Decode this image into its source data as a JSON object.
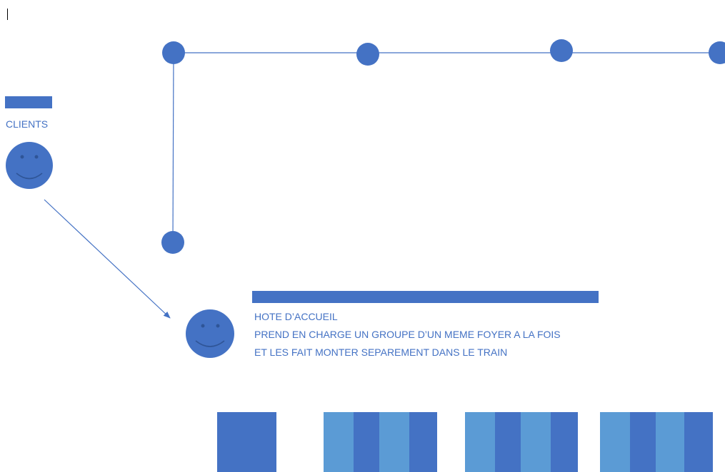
{
  "colors": {
    "primary": "#4472c4",
    "secondary": "#5b9bd5",
    "line": "#4472c4"
  },
  "clients": {
    "label": "CLIENTS",
    "icon": "smiley-face-icon"
  },
  "host": {
    "title": "HOTE D’ACCUEIL",
    "line1": "PREND EN CHARGE UN GROUPE D’UN MEME FOYER A LA FOIS",
    "line2": "ET LES FAIT MONTER SEPAREMENT DANS LE TRAIN",
    "icon": "smiley-face-icon"
  },
  "train": {
    "cars": [
      {
        "stripes": [
          "primary"
        ]
      },
      {
        "stripes": [
          "secondary",
          "primary",
          "secondary",
          "primary"
        ]
      },
      {
        "stripes": [
          "secondary",
          "primary",
          "secondary",
          "primary"
        ]
      },
      {
        "stripes": [
          "secondary",
          "primary",
          "secondary",
          "primary"
        ]
      }
    ]
  }
}
